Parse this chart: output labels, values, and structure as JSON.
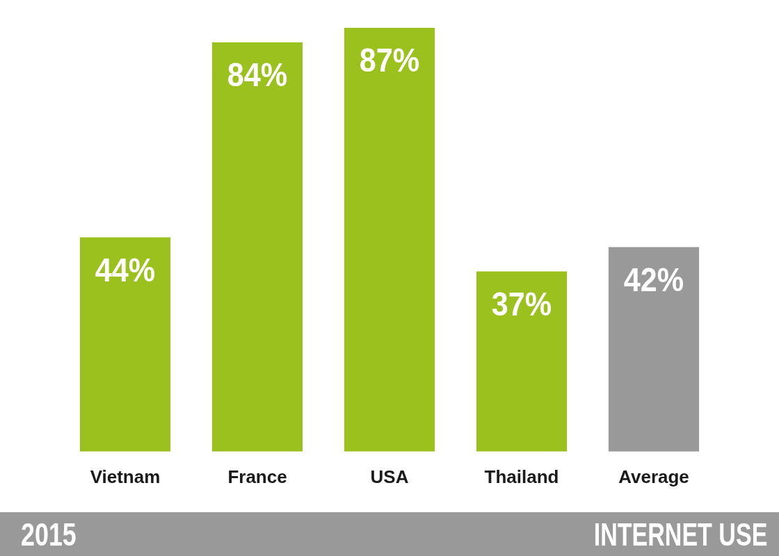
{
  "chart_data": {
    "type": "bar",
    "title": "INTERNET USE",
    "annotations": [
      "2015"
    ],
    "categories": [
      "Vietnam",
      "France",
      "USA",
      "Thailand",
      "Average"
    ],
    "values": [
      44,
      84,
      87,
      37,
      42
    ],
    "colors": [
      "#9bc11e",
      "#9bc11e",
      "#9bc11e",
      "#9bc11e",
      "#999999"
    ],
    "value_labels": [
      "44%",
      "84%",
      "87%",
      "37%",
      "42%"
    ],
    "grid": false,
    "legend": false,
    "tick_labels": "x"
  }
}
